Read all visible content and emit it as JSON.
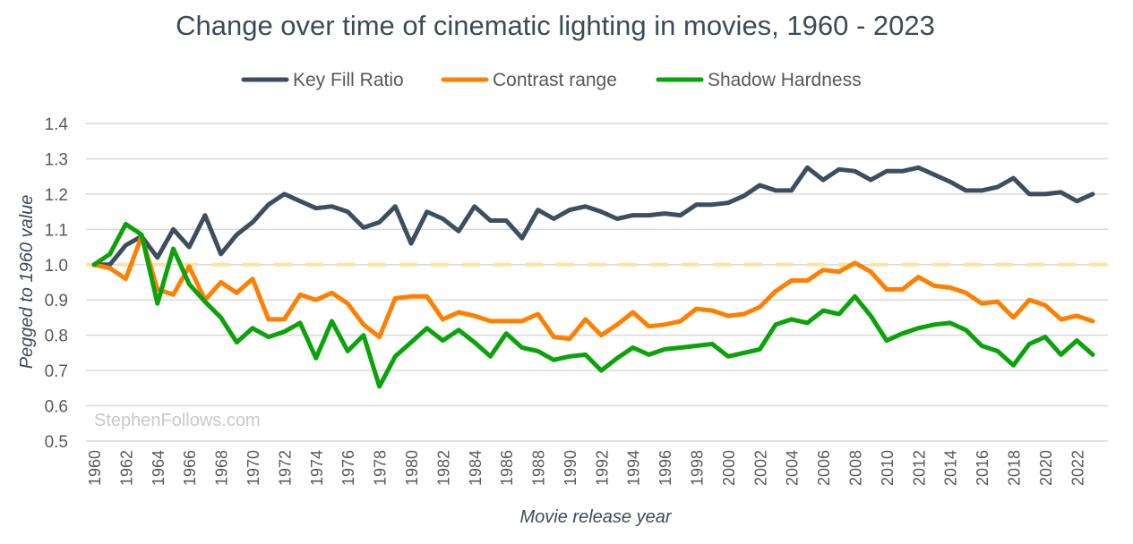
{
  "chart_data": {
    "type": "line",
    "title": "Change over time of cinematic lighting in movies, 1960 - 2023",
    "xlabel": "Movie release year",
    "ylabel": "Pegged to 1960 value",
    "ylim": [
      0.5,
      1.4
    ],
    "yticks": [
      "0.5",
      "0.6",
      "0.7",
      "0.8",
      "0.9",
      "1.0",
      "1.1",
      "1.2",
      "1.3",
      "1.4"
    ],
    "x_start": 1960,
    "x_end": 2023,
    "xticks": [
      "1960",
      "1962",
      "1964",
      "1966",
      "1968",
      "1970",
      "1972",
      "1974",
      "1976",
      "1978",
      "1980",
      "1982",
      "1984",
      "1986",
      "1988",
      "1990",
      "1992",
      "1994",
      "1996",
      "1998",
      "2000",
      "2002",
      "2004",
      "2006",
      "2008",
      "2010",
      "2012",
      "2014",
      "2016",
      "2018",
      "2020",
      "2022"
    ],
    "grid": true,
    "legend": "top",
    "reference_line": {
      "value": 1.0,
      "color": "#fde49a"
    },
    "watermark": "StephenFollows.com",
    "series": [
      {
        "name": "Key Fill Ratio",
        "color": "#3d4f5e",
        "values": [
          1.0,
          1.0,
          1.055,
          1.08,
          1.02,
          1.1,
          1.05,
          1.14,
          1.03,
          1.085,
          1.12,
          1.17,
          1.2,
          1.18,
          1.16,
          1.165,
          1.15,
          1.105,
          1.12,
          1.165,
          1.06,
          1.15,
          1.13,
          1.095,
          1.165,
          1.125,
          1.125,
          1.075,
          1.155,
          1.13,
          1.155,
          1.165,
          1.15,
          1.13,
          1.14,
          1.14,
          1.145,
          1.14,
          1.17,
          1.17,
          1.175,
          1.195,
          1.225,
          1.21,
          1.21,
          1.275,
          1.24,
          1.27,
          1.265,
          1.24,
          1.265,
          1.265,
          1.275,
          1.255,
          1.235,
          1.21,
          1.21,
          1.22,
          1.245,
          1.2,
          1.2,
          1.205,
          1.18,
          1.2
        ]
      },
      {
        "name": "Contrast range",
        "color": "#ff7f00",
        "values": [
          1.0,
          0.99,
          0.96,
          1.08,
          0.93,
          0.915,
          0.995,
          0.9,
          0.95,
          0.92,
          0.96,
          0.845,
          0.845,
          0.915,
          0.9,
          0.92,
          0.89,
          0.83,
          0.795,
          0.905,
          0.91,
          0.91,
          0.845,
          0.865,
          0.855,
          0.84,
          0.84,
          0.84,
          0.86,
          0.795,
          0.79,
          0.845,
          0.8,
          0.83,
          0.865,
          0.825,
          0.83,
          0.84,
          0.875,
          0.87,
          0.855,
          0.86,
          0.88,
          0.925,
          0.955,
          0.955,
          0.985,
          0.98,
          1.005,
          0.98,
          0.93,
          0.93,
          0.965,
          0.94,
          0.935,
          0.92,
          0.89,
          0.895,
          0.85,
          0.9,
          0.885,
          0.845,
          0.855,
          0.84
        ]
      },
      {
        "name": "Shadow Hardness",
        "color": "#0aa30a",
        "values": [
          1.0,
          1.03,
          1.115,
          1.085,
          0.89,
          1.045,
          0.945,
          0.895,
          0.85,
          0.78,
          0.82,
          0.795,
          0.81,
          0.835,
          0.735,
          0.84,
          0.755,
          0.8,
          0.655,
          0.74,
          0.78,
          0.82,
          0.785,
          0.815,
          0.78,
          0.74,
          0.805,
          0.765,
          0.755,
          0.73,
          0.74,
          0.745,
          0.7,
          0.735,
          0.765,
          0.745,
          0.76,
          0.765,
          0.77,
          0.775,
          0.74,
          0.75,
          0.76,
          0.83,
          0.845,
          0.835,
          0.87,
          0.86,
          0.91,
          0.855,
          0.785,
          0.805,
          0.82,
          0.83,
          0.835,
          0.815,
          0.77,
          0.755,
          0.715,
          0.775,
          0.795,
          0.745,
          0.785,
          0.745
        ]
      }
    ]
  }
}
